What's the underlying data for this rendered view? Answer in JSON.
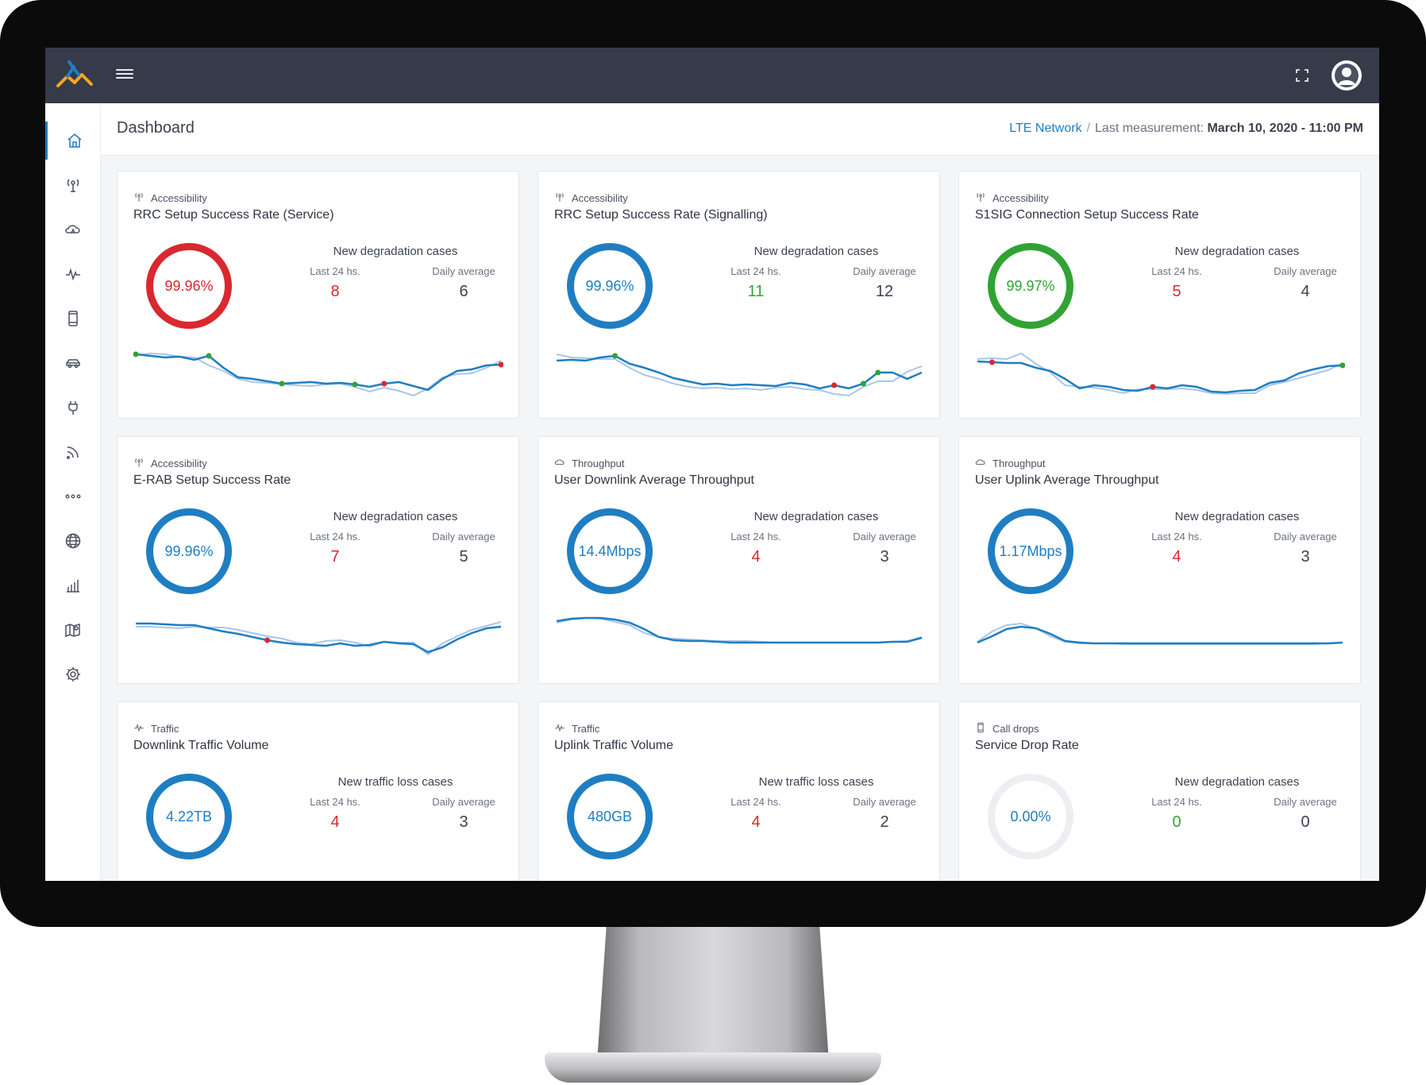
{
  "header": {
    "title": "Dashboard",
    "network_link": "LTE Network",
    "separator": "/",
    "measurement_label": "Last measurement:",
    "measurement_date": "March 10, 2020 - 11:00 PM"
  },
  "topbar": {
    "menu_icon": "hamburger-icon",
    "fullscreen_icon": "expand-icon",
    "avatar_icon": "user-avatar-icon"
  },
  "sidebar": {
    "items": [
      {
        "icon": "home-icon",
        "active": true
      },
      {
        "icon": "antenna-icon"
      },
      {
        "icon": "cloud-icon"
      },
      {
        "icon": "pulse-icon"
      },
      {
        "icon": "phone-icon"
      },
      {
        "icon": "car-icon"
      },
      {
        "icon": "plug-icon"
      },
      {
        "icon": "signal-icon"
      },
      {
        "icon": "more-icon"
      },
      {
        "icon": "globe-icon"
      },
      {
        "icon": "bar-chart-icon"
      },
      {
        "icon": "map-icon"
      },
      {
        "icon": "gear-icon"
      }
    ]
  },
  "colors": {
    "blue": "#1f7ec2",
    "red": "#d9282f",
    "green": "#31a334",
    "topbar": "#353b48"
  },
  "cards": [
    {
      "category": "Accessibility",
      "icon": "antenna-icon",
      "title": "RRC Setup Success Rate (Service)",
      "gauge": "99.96%",
      "gauge_color": "red",
      "stats_title": "New degradation cases",
      "last_label": "Last 24 hs.",
      "last_value": "8",
      "last_color": "red",
      "avg_label": "Daily average",
      "avg_value": "6"
    },
    {
      "category": "Accessibility",
      "icon": "antenna-icon",
      "title": "RRC Setup Success Rate (Signalling)",
      "gauge": "99.96%",
      "gauge_color": "blue",
      "stats_title": "New degradation cases",
      "last_label": "Last 24 hs.",
      "last_value": "11",
      "last_color": "green",
      "avg_label": "Daily average",
      "avg_value": "12"
    },
    {
      "category": "Accessibility",
      "icon": "antenna-icon",
      "title": "S1SIG Connection Setup Success Rate",
      "gauge": "99.97%",
      "gauge_color": "green",
      "stats_title": "New degradation cases",
      "last_label": "Last 24 hs.",
      "last_value": "5",
      "last_color": "red",
      "avg_label": "Daily average",
      "avg_value": "4"
    },
    {
      "category": "Accessibility",
      "icon": "antenna-icon",
      "title": "E-RAB Setup Success Rate",
      "gauge": "99.96%",
      "gauge_color": "blue",
      "stats_title": "New degradation cases",
      "last_label": "Last 24 hs.",
      "last_value": "7",
      "last_color": "red",
      "avg_label": "Daily average",
      "avg_value": "5"
    },
    {
      "category": "Throughput",
      "icon": "cloud-icon",
      "title": "User Downlink Average Throughput",
      "gauge": "14.4Mbps",
      "gauge_color": "blue",
      "stats_title": "New degradation cases",
      "last_label": "Last 24 hs.",
      "last_value": "4",
      "last_color": "red",
      "avg_label": "Daily average",
      "avg_value": "3"
    },
    {
      "category": "Throughput",
      "icon": "cloud-icon",
      "title": "User Uplink Average Throughput",
      "gauge": "1.17Mbps",
      "gauge_color": "blue",
      "stats_title": "New degradation cases",
      "last_label": "Last 24 hs.",
      "last_value": "4",
      "last_color": "red",
      "avg_label": "Daily average",
      "avg_value": "3"
    },
    {
      "category": "Traffic",
      "icon": "pulse-icon",
      "title": "Downlink Traffic Volume",
      "gauge": "4.22TB",
      "gauge_color": "blue",
      "stats_title": "New traffic loss cases",
      "last_label": "Last 24 hs.",
      "last_value": "4",
      "last_color": "red",
      "avg_label": "Daily average",
      "avg_value": "3"
    },
    {
      "category": "Traffic",
      "icon": "pulse-icon",
      "title": "Uplink Traffic Volume",
      "gauge": "480GB",
      "gauge_color": "blue",
      "stats_title": "New traffic loss cases",
      "last_label": "Last 24 hs.",
      "last_value": "4",
      "last_color": "red",
      "avg_label": "Daily average",
      "avg_value": "2"
    },
    {
      "category": "Call drops",
      "icon": "phone-icon",
      "title": "Service Drop Rate",
      "gauge": "0.00%",
      "gauge_color": "empty",
      "stats_title": "New degradation cases",
      "last_label": "Last 24 hs.",
      "last_value": "0",
      "last_color": "green",
      "avg_label": "Daily average",
      "avg_value": "0"
    }
  ],
  "sparklines": [
    {
      "main": [
        55,
        53,
        51,
        52,
        48,
        53,
        38,
        26,
        24,
        21,
        18,
        19,
        20,
        18,
        19,
        17,
        14,
        18,
        20,
        15,
        10,
        24,
        34,
        36,
        41,
        42
      ],
      "ref": [
        54,
        56,
        55,
        52,
        51,
        41,
        34,
        24,
        20,
        19,
        17,
        16,
        15,
        17,
        18,
        14,
        8,
        13,
        9,
        3,
        12,
        26,
        30,
        31,
        38,
        47
      ],
      "markers": [
        {
          "i": 0,
          "c": "green"
        },
        {
          "i": 5,
          "c": "green"
        },
        {
          "i": 10,
          "c": "green"
        },
        {
          "i": 15,
          "c": "green"
        },
        {
          "i": 17,
          "c": "red"
        },
        {
          "i": 25,
          "c": "red"
        }
      ]
    },
    {
      "main": [
        47,
        48,
        47,
        51,
        53,
        43,
        38,
        32,
        25,
        21,
        17,
        18,
        16,
        17,
        16,
        15,
        19,
        17,
        12,
        16,
        12,
        18,
        32,
        32,
        24,
        32
      ],
      "ref": [
        55,
        51,
        50,
        49,
        49,
        38,
        29,
        24,
        18,
        14,
        12,
        13,
        11,
        12,
        10,
        13,
        14,
        11,
        10,
        5,
        3,
        14,
        21,
        21,
        33,
        40
      ],
      "markers": [
        {
          "i": 4,
          "c": "green"
        },
        {
          "i": 19,
          "c": "red"
        },
        {
          "i": 21,
          "c": "green"
        },
        {
          "i": 22,
          "c": "green"
        }
      ]
    },
    {
      "main": [
        46,
        45,
        44,
        44,
        38,
        34,
        24,
        12,
        16,
        14,
        10,
        9,
        14,
        12,
        16,
        14,
        8,
        7,
        9,
        10,
        19,
        22,
        31,
        36,
        40,
        41
      ],
      "ref": [
        49,
        50,
        49,
        56,
        43,
        32,
        16,
        14,
        13,
        10,
        6,
        11,
        11,
        11,
        12,
        10,
        6,
        5,
        6,
        6,
        16,
        20,
        25,
        30,
        35,
        44
      ],
      "markers": [
        {
          "i": 1,
          "c": "red"
        },
        {
          "i": 12,
          "c": "red"
        },
        {
          "i": 25,
          "c": "green"
        }
      ]
    },
    {
      "main": [
        50,
        50,
        49,
        48,
        48,
        44,
        40,
        37,
        33,
        29,
        26,
        24,
        23,
        22,
        25,
        22,
        23,
        27,
        25,
        24,
        14,
        20,
        30,
        38,
        44,
        46
      ],
      "ref": [
        46,
        46,
        45,
        44,
        46,
        45,
        45,
        42,
        38,
        34,
        31,
        26,
        24,
        28,
        29,
        26,
        21,
        27,
        26,
        26,
        11,
        25,
        34,
        42,
        47,
        52
      ],
      "markers": [
        {
          "i": 9,
          "c": "red"
        }
      ]
    },
    {
      "main": [
        53,
        56,
        57,
        57,
        55,
        51,
        43,
        33,
        29,
        28,
        28,
        27,
        26,
        26,
        26,
        26,
        26,
        26,
        26,
        26,
        26,
        26,
        26,
        27,
        27,
        32
      ],
      "ref": [
        51,
        55,
        57,
        56,
        52,
        48,
        38,
        33,
        31,
        30,
        29,
        28,
        28,
        28,
        27,
        26,
        26,
        26,
        26,
        26,
        26,
        26,
        26,
        27,
        28,
        33
      ],
      "markers": []
    },
    {
      "main": [
        26,
        34,
        43,
        46,
        44,
        37,
        28,
        26,
        25,
        25,
        25,
        25,
        25,
        25,
        25,
        25,
        25,
        25,
        25,
        25,
        25,
        25,
        25,
        25,
        25,
        26
      ],
      "ref": [
        27,
        40,
        48,
        50,
        44,
        34,
        27,
        25,
        25,
        25,
        24,
        24,
        24,
        24,
        24,
        24,
        24,
        24,
        24,
        24,
        24,
        24,
        24,
        24,
        25,
        26
      ],
      "markers": []
    }
  ]
}
